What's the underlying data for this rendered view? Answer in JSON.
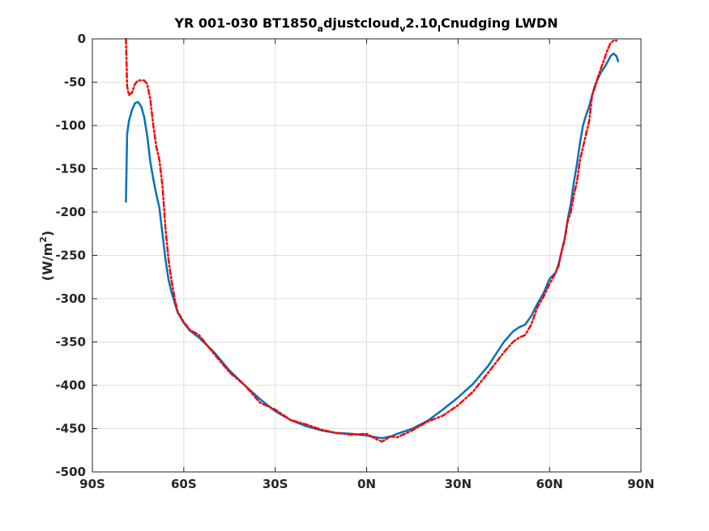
{
  "chart_data": {
    "type": "line",
    "title": {
      "parts": [
        {
          "text": "YR 001-030 BT1850",
          "shift": "none"
        },
        {
          "text": "a",
          "shift": "sub"
        },
        {
          "text": "djustcloud",
          "shift": "none"
        },
        {
          "text": "v",
          "shift": "sub"
        },
        {
          "text": "2.10",
          "shift": "none"
        },
        {
          "text": "I",
          "shift": "sub"
        },
        {
          "text": "Cnudging LWDN",
          "shift": "none"
        }
      ]
    },
    "ylabel": {
      "parts": [
        {
          "text": "(W/m",
          "shift": "none"
        },
        {
          "text": "2",
          "shift": "super"
        },
        {
          "text": ")",
          "shift": "none"
        }
      ]
    },
    "xlim": [
      -90,
      90
    ],
    "ylim": [
      -500,
      0
    ],
    "grid": true,
    "x_ticks": [
      {
        "value": -90,
        "label": "90S"
      },
      {
        "value": -60,
        "label": "60S"
      },
      {
        "value": -30,
        "label": "30S"
      },
      {
        "value": 0,
        "label": "0N"
      },
      {
        "value": 30,
        "label": "30N"
      },
      {
        "value": 60,
        "label": "60N"
      },
      {
        "value": 90,
        "label": "90N"
      }
    ],
    "y_ticks": [
      {
        "value": 0,
        "label": "0"
      },
      {
        "value": -50,
        "label": "-50"
      },
      {
        "value": -100,
        "label": "-100"
      },
      {
        "value": -150,
        "label": "-150"
      },
      {
        "value": -200,
        "label": "-200"
      },
      {
        "value": -250,
        "label": "-250"
      },
      {
        "value": -300,
        "label": "-300"
      },
      {
        "value": -350,
        "label": "-350"
      },
      {
        "value": -400,
        "label": "-400"
      },
      {
        "value": -450,
        "label": "-450"
      },
      {
        "value": -500,
        "label": "-500"
      }
    ],
    "series": [
      {
        "color": "#0072BD",
        "style": "solid",
        "points": [
          [
            -79,
            -188
          ],
          [
            -78.6,
            -110
          ],
          [
            -78,
            -95
          ],
          [
            -77,
            -82
          ],
          [
            -76,
            -74
          ],
          [
            -75,
            -73
          ],
          [
            -74,
            -78
          ],
          [
            -73,
            -90
          ],
          [
            -72,
            -112
          ],
          [
            -71,
            -142
          ],
          [
            -70,
            -162
          ],
          [
            -69,
            -180
          ],
          [
            -68,
            -195
          ],
          [
            -67,
            -225
          ],
          [
            -66,
            -255
          ],
          [
            -65,
            -278
          ],
          [
            -64,
            -293
          ],
          [
            -62,
            -316
          ],
          [
            -60,
            -328
          ],
          [
            -58,
            -337
          ],
          [
            -55,
            -345
          ],
          [
            -50,
            -362
          ],
          [
            -45,
            -383
          ],
          [
            -40,
            -400
          ],
          [
            -35,
            -416
          ],
          [
            -30,
            -430
          ],
          [
            -25,
            -440
          ],
          [
            -20,
            -447
          ],
          [
            -15,
            -452
          ],
          [
            -10,
            -455
          ],
          [
            -5,
            -456
          ],
          [
            0,
            -458
          ],
          [
            3,
            -460
          ],
          [
            5,
            -461
          ],
          [
            8,
            -459
          ],
          [
            10,
            -456
          ],
          [
            15,
            -450
          ],
          [
            20,
            -441
          ],
          [
            25,
            -428
          ],
          [
            30,
            -414
          ],
          [
            35,
            -398
          ],
          [
            40,
            -377
          ],
          [
            45,
            -350
          ],
          [
            48,
            -338
          ],
          [
            50,
            -333
          ],
          [
            52,
            -330
          ],
          [
            54,
            -320
          ],
          [
            56,
            -306
          ],
          [
            58,
            -294
          ],
          [
            60,
            -277
          ],
          [
            62,
            -270
          ],
          [
            63,
            -260
          ],
          [
            64,
            -245
          ],
          [
            65,
            -230
          ],
          [
            66,
            -208
          ],
          [
            67,
            -190
          ],
          [
            68,
            -165
          ],
          [
            69,
            -145
          ],
          [
            70,
            -120
          ],
          [
            71,
            -100
          ],
          [
            72,
            -88
          ],
          [
            73,
            -78
          ],
          [
            74,
            -65
          ],
          [
            75,
            -53
          ],
          [
            76,
            -45
          ],
          [
            77,
            -38
          ],
          [
            78,
            -33
          ],
          [
            79,
            -27
          ],
          [
            80,
            -20
          ],
          [
            81,
            -17
          ],
          [
            82,
            -20
          ],
          [
            82.5,
            -26
          ]
        ]
      },
      {
        "color": "#FF0000",
        "style": "dashdot",
        "points": [
          [
            -79,
            0
          ],
          [
            -78.6,
            -55
          ],
          [
            -78,
            -65
          ],
          [
            -77,
            -62
          ],
          [
            -76,
            -52
          ],
          [
            -75,
            -48
          ],
          [
            -73,
            -48
          ],
          [
            -72,
            -52
          ],
          [
            -71,
            -70
          ],
          [
            -70,
            -100
          ],
          [
            -69,
            -125
          ],
          [
            -68,
            -140
          ],
          [
            -67,
            -170
          ],
          [
            -66,
            -220
          ],
          [
            -65,
            -255
          ],
          [
            -64,
            -280
          ],
          [
            -63,
            -300
          ],
          [
            -62,
            -315
          ],
          [
            -60,
            -327
          ],
          [
            -58,
            -336
          ],
          [
            -55,
            -342
          ],
          [
            -50,
            -364
          ],
          [
            -45,
            -385
          ],
          [
            -40,
            -400
          ],
          [
            -35,
            -420
          ],
          [
            -30,
            -428
          ],
          [
            -25,
            -440
          ],
          [
            -20,
            -445
          ],
          [
            -15,
            -451
          ],
          [
            -10,
            -455
          ],
          [
            -5,
            -457
          ],
          [
            0,
            -456
          ],
          [
            3,
            -462
          ],
          [
            5,
            -465
          ],
          [
            8,
            -459
          ],
          [
            10,
            -460
          ],
          [
            15,
            -452
          ],
          [
            20,
            -442
          ],
          [
            25,
            -435
          ],
          [
            30,
            -423
          ],
          [
            35,
            -407
          ],
          [
            40,
            -385
          ],
          [
            45,
            -362
          ],
          [
            48,
            -350
          ],
          [
            50,
            -345
          ],
          [
            52,
            -342
          ],
          [
            54,
            -330
          ],
          [
            56,
            -310
          ],
          [
            58,
            -298
          ],
          [
            60,
            -283
          ],
          [
            62,
            -270
          ],
          [
            63,
            -262
          ],
          [
            64,
            -245
          ],
          [
            65,
            -232
          ],
          [
            66,
            -210
          ],
          [
            67,
            -200
          ],
          [
            68,
            -180
          ],
          [
            69,
            -165
          ],
          [
            70,
            -140
          ],
          [
            71,
            -125
          ],
          [
            72,
            -110
          ],
          [
            73,
            -95
          ],
          [
            74,
            -65
          ],
          [
            75,
            -55
          ],
          [
            76,
            -43
          ],
          [
            77,
            -33
          ],
          [
            78,
            -23
          ],
          [
            79,
            -13
          ],
          [
            80,
            -5
          ],
          [
            81,
            -2
          ],
          [
            82,
            -2
          ]
        ]
      }
    ]
  }
}
